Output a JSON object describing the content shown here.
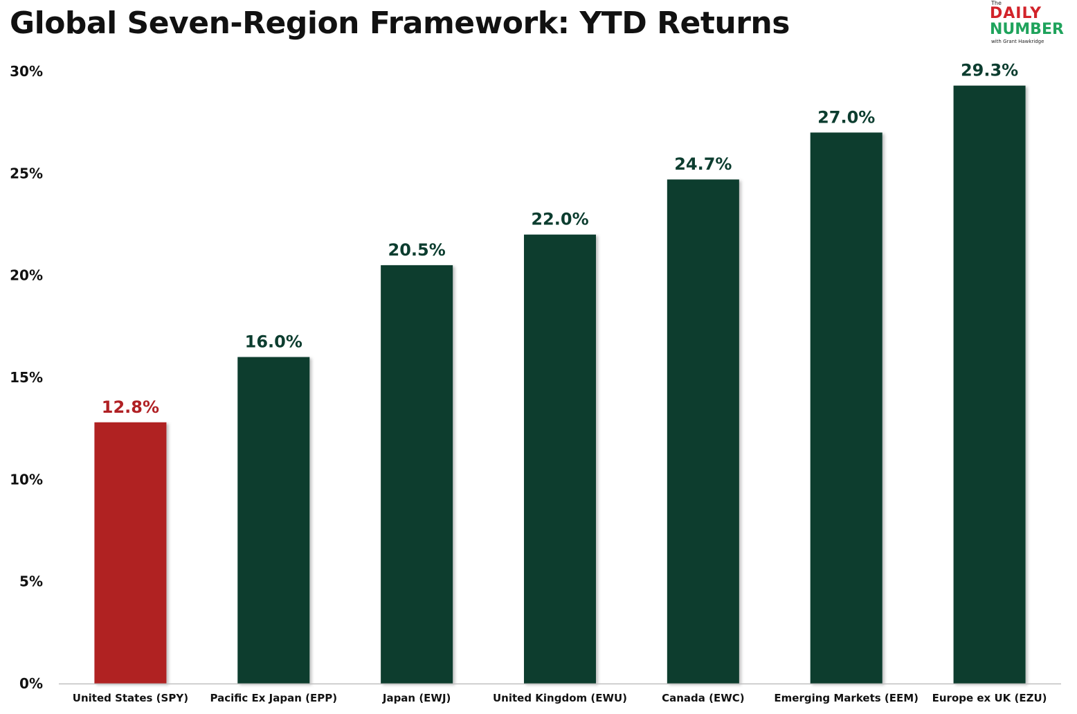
{
  "chart_data": {
    "type": "bar",
    "title": "Global Seven-Region Framework: YTD Returns",
    "categories": [
      "United States (SPY)",
      "Pacific Ex Japan (EPP)",
      "Japan (EWJ)",
      "United Kingdom (EWU)",
      "Canada (EWC)",
      "Emerging Markets (EEM)",
      "Europe ex UK (EZU)"
    ],
    "values": [
      12.8,
      16.0,
      20.5,
      22.0,
      24.7,
      27.0,
      29.3
    ],
    "data_labels": [
      "12.8%",
      "16.0%",
      "20.5%",
      "22.0%",
      "24.7%",
      "27.0%",
      "29.3%"
    ],
    "y_ticks": [
      0,
      5,
      10,
      15,
      20,
      25,
      30
    ],
    "y_tick_labels": [
      "0%",
      "5%",
      "10%",
      "15%",
      "20%",
      "25%",
      "30%"
    ],
    "ylim": [
      0,
      30
    ],
    "xlabel": "",
    "ylabel": "",
    "grid": false,
    "legend": "none",
    "colors": {
      "default_bar": "#0c3d2f",
      "highlight_bar": "#b02024",
      "highlight_index": 0,
      "default_label": "#0c3d2f",
      "highlight_label": "#b02024"
    }
  },
  "logo": {
    "the": "The",
    "daily": "DAILY",
    "number": "NUMBER",
    "sub": "with Grant Hawkridge"
  }
}
